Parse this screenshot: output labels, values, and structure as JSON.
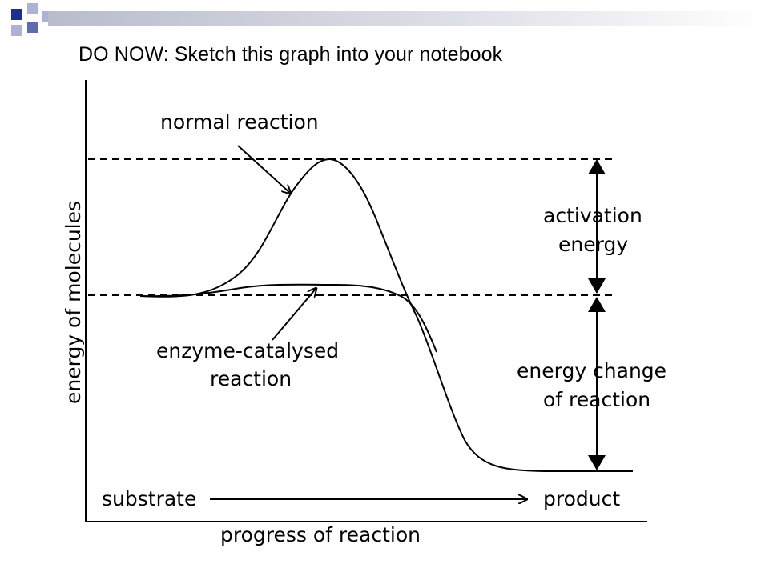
{
  "slide": {
    "title": "DO NOW: Sketch this graph into your notebook"
  },
  "decoration": {
    "square_colors": [
      "#1f2f8c",
      "#aeb3d3",
      "#5f6ab1"
    ]
  },
  "diagram": {
    "y_axis_label": "energy of molecules",
    "x_axis_label": "progress of reaction",
    "start_label": "substrate",
    "end_label": "product",
    "curve_normal_label": "normal reaction",
    "curve_enzyme_label_line1": "enzyme-catalysed",
    "curve_enzyme_label_line2": "reaction",
    "activation_label_line1": "activation",
    "activation_label_line2": "energy",
    "change_label_line1": "energy change",
    "change_label_line2": "of reaction"
  }
}
